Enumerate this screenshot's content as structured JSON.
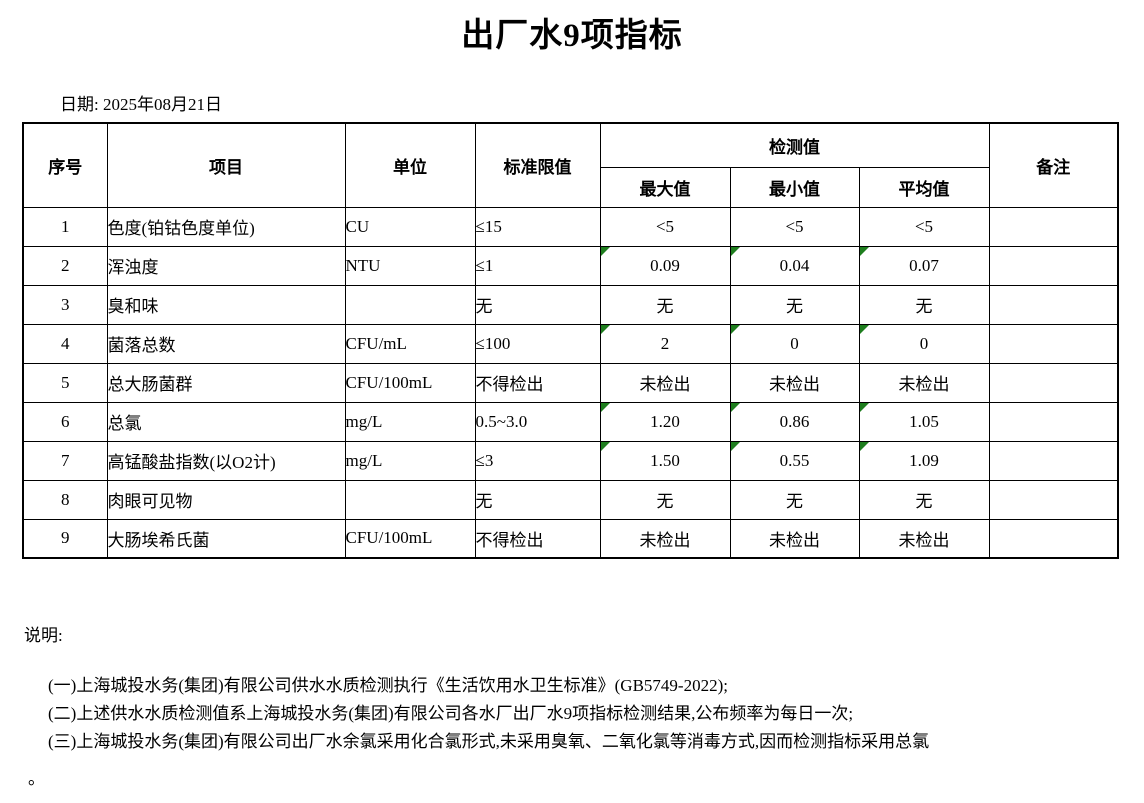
{
  "page": {
    "title": "出厂水9项指标",
    "date_label": "日期: 2025年08月21日"
  },
  "table": {
    "headers": {
      "seq": "序号",
      "item": "项目",
      "unit": "单位",
      "limit": "标准限值",
      "detection": "检测值",
      "max": "最大值",
      "min": "最小值",
      "avg": "平均值",
      "remark": "备注"
    },
    "rows": [
      {
        "seq": "1",
        "item": "色度(铂钴色度单位)",
        "unit": "CU",
        "limit": "≤15",
        "max": "<5",
        "min": "<5",
        "avg": "<5",
        "remark": "",
        "flags": [
          false,
          false,
          false
        ]
      },
      {
        "seq": "2",
        "item": "浑浊度",
        "unit": "NTU",
        "limit": "≤1",
        "max": "0.09",
        "min": "0.04",
        "avg": "0.07",
        "remark": "",
        "flags": [
          true,
          true,
          true
        ]
      },
      {
        "seq": "3",
        "item": "臭和味",
        "unit": "",
        "limit": "无",
        "max": "无",
        "min": "无",
        "avg": "无",
        "remark": "",
        "flags": [
          false,
          false,
          false
        ]
      },
      {
        "seq": "4",
        "item": "菌落总数",
        "unit": "CFU/mL",
        "limit": "≤100",
        "max": "2",
        "min": "0",
        "avg": "0",
        "remark": "",
        "flags": [
          true,
          true,
          true
        ]
      },
      {
        "seq": "5",
        "item": "总大肠菌群",
        "unit": "CFU/100mL",
        "limit": "不得检出",
        "max": "未检出",
        "min": "未检出",
        "avg": "未检出",
        "remark": "",
        "flags": [
          false,
          false,
          false
        ]
      },
      {
        "seq": "6",
        "item": "总氯",
        "unit": "mg/L",
        "limit": "0.5~3.0",
        "max": "1.20",
        "min": "0.86",
        "avg": "1.05",
        "remark": "",
        "flags": [
          true,
          true,
          true
        ]
      },
      {
        "seq": "7",
        "item": "高锰酸盐指数(以O2计)",
        "unit": "mg/L",
        "limit": "≤3",
        "max": "1.50",
        "min": "0.55",
        "avg": "1.09",
        "remark": "",
        "flags": [
          true,
          true,
          true
        ]
      },
      {
        "seq": "8",
        "item": "肉眼可见物",
        "unit": "",
        "limit": "无",
        "max": "无",
        "min": "无",
        "avg": "无",
        "remark": "",
        "flags": [
          false,
          false,
          false
        ]
      },
      {
        "seq": "9",
        "item": "大肠埃希氏菌",
        "unit": "CFU/100mL",
        "limit": "不得检出",
        "max": "未检出",
        "min": "未检出",
        "avg": "未检出",
        "remark": "",
        "flags": [
          false,
          false,
          false
        ]
      }
    ]
  },
  "notes": {
    "heading": "说明:",
    "lines": [
      "(一)上海城投水务(集团)有限公司供水水质检测执行《生活饮用水卫生标准》(GB5749-2022);",
      "(二)上述供水水质检测值系上海城投水务(集团)有限公司各水厂出厂水9项指标检测结果,公布频率为每日一次;",
      "(三)上海城投水务(集团)有限公司出厂水余氯采用化合氯形式,未采用臭氧、二氧化氯等消毒方式,因而检测指标采用总氯"
    ],
    "trailing": "。"
  },
  "colors": {
    "flag_green": "#1e7e1e",
    "border": "#000000"
  }
}
